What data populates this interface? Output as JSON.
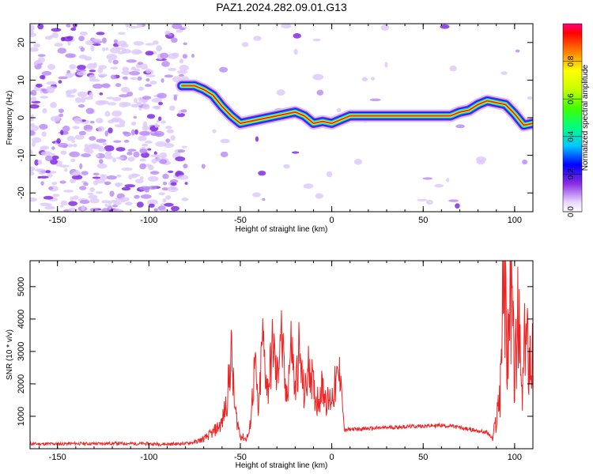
{
  "title": "PAZ1.2024.282.09.01.G13",
  "chart_data": [
    {
      "type": "heatmap",
      "xlabel": "Height of straight line (km)",
      "ylabel": "Frequency (Hz)",
      "xlim": [
        -165,
        110
      ],
      "ylim": [
        -25,
        25
      ],
      "xticks": [
        -150,
        -100,
        -50,
        0,
        50,
        100
      ],
      "yticks": [
        -20,
        -10,
        0,
        10,
        20
      ],
      "ridge": {
        "x": [
          -82,
          -75,
          -70,
          -65,
          -60,
          -55,
          -50,
          -45,
          -40,
          -35,
          -30,
          -25,
          -20,
          -15,
          -10,
          -5,
          0,
          5,
          10,
          20,
          30,
          40,
          50,
          60,
          65,
          70,
          75,
          80,
          85,
          90,
          95,
          100,
          105,
          110
        ],
        "y": [
          8.5,
          8.5,
          7.5,
          6,
          3,
          0.5,
          -1.5,
          -1,
          -0.5,
          0,
          0.5,
          1,
          1.5,
          0.5,
          -1.5,
          -1,
          -1.5,
          -0.5,
          0.5,
          0.5,
          0.5,
          0.5,
          0.5,
          0.5,
          0.5,
          1.5,
          2,
          3.5,
          4.5,
          4,
          3.5,
          1,
          -2,
          -1.5
        ]
      },
      "colorbar": {
        "label": "Normalized spectral amplitude",
        "range": [
          0,
          1
        ],
        "ticks": [
          0.0,
          0.2,
          0.4,
          0.6,
          0.8
        ]
      }
    },
    {
      "type": "line",
      "xlabel": "Height of straight line (km)",
      "ylabel": "SNR (10 * v/v)",
      "xlim": [
        -165,
        110
      ],
      "ylim": [
        0,
        5800
      ],
      "xticks": [
        -150,
        -100,
        -50,
        0,
        50,
        100
      ],
      "yticks": [
        1000,
        2000,
        3000,
        4000,
        5000
      ],
      "color": "#ee2222",
      "x": [
        -165,
        -150,
        -140,
        -130,
        -120,
        -110,
        -100,
        -90,
        -80,
        -75,
        -70,
        -65,
        -60,
        -57,
        -55,
        -53,
        -50,
        -47,
        -45,
        -42,
        -40,
        -38,
        -35,
        -32,
        -30,
        -28,
        -25,
        -22,
        -20,
        -18,
        -15,
        -12,
        -10,
        -8,
        -5,
        -2,
        0,
        3,
        5,
        6,
        7,
        10,
        20,
        30,
        40,
        50,
        60,
        65,
        70,
        75,
        80,
        85,
        88,
        90,
        92,
        94,
        96,
        98,
        100,
        102,
        104,
        106,
        108,
        110
      ],
      "y": [
        150,
        150,
        160,
        155,
        165,
        160,
        150,
        140,
        160,
        200,
        300,
        500,
        800,
        1600,
        3000,
        1200,
        400,
        300,
        500,
        2600,
        1000,
        3400,
        1800,
        3300,
        2000,
        3800,
        1500,
        3300,
        1700,
        3000,
        1600,
        2700,
        1800,
        1500,
        1900,
        1400,
        1600,
        2100,
        2300,
        1200,
        550,
        600,
        620,
        650,
        680,
        700,
        720,
        700,
        650,
        600,
        550,
        500,
        300,
        900,
        1800,
        5600,
        3000,
        5200,
        2200,
        4000,
        1500,
        3500,
        3000,
        3000
      ]
    }
  ]
}
